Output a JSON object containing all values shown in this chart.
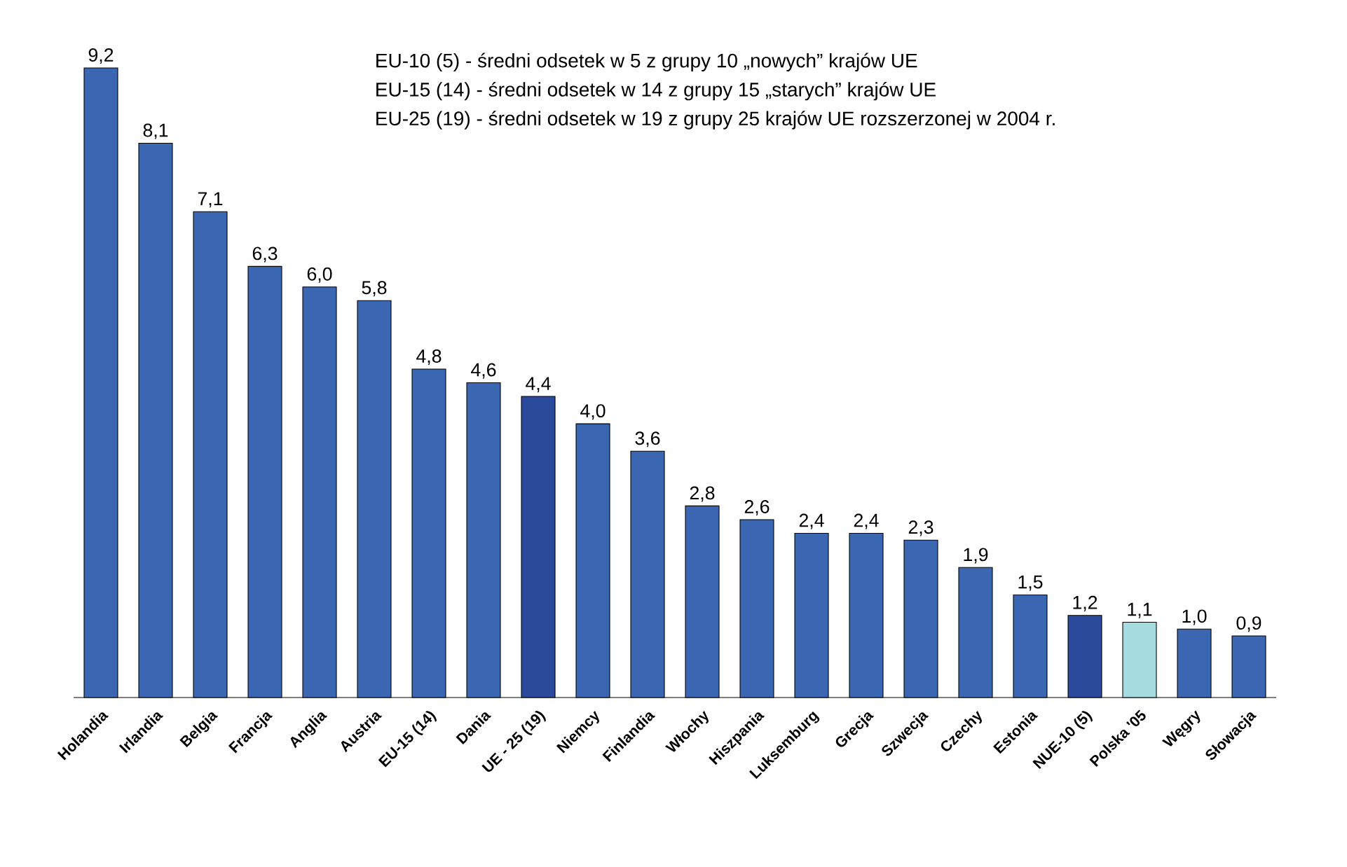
{
  "chart_data": {
    "type": "bar",
    "categories": [
      "Holandia",
      "Irlandia",
      "Belgia",
      "Francja",
      "Anglia",
      "Austria",
      "EU-15 (14)",
      "Dania",
      "UE - 25 (19)",
      "Niemcy",
      "Finlandia",
      "Włochy",
      "Hiszpania",
      "Luksemburg",
      "Grecja",
      "Szwecja",
      "Czechy",
      "Estonia",
      "NUE-10 (5)",
      "Polska '05",
      "Węgry",
      "Słowacja"
    ],
    "values": [
      9.2,
      8.1,
      7.1,
      6.3,
      6.0,
      5.8,
      4.8,
      4.6,
      4.4,
      4.0,
      3.6,
      2.8,
      2.6,
      2.4,
      2.4,
      2.3,
      1.9,
      1.5,
      1.2,
      1.1,
      1.0,
      0.9
    ],
    "value_labels": [
      "9,2",
      "8,1",
      "7,1",
      "6,3",
      "6,0",
      "5,8",
      "4,8",
      "4,6",
      "4,4",
      "4,0",
      "3,6",
      "2,8",
      "2,6",
      "2,4",
      "2,4",
      "2,3",
      "1,9",
      "1,5",
      "1,2",
      "1,1",
      "1,0",
      "0,9"
    ],
    "colors": [
      "#3a66b2",
      "#3a66b2",
      "#3a66b2",
      "#3a66b2",
      "#3a66b2",
      "#3a66b2",
      "#3a66b2",
      "#3a66b2",
      "#2c4a9c",
      "#3a66b2",
      "#3a66b2",
      "#3a66b2",
      "#3a66b2",
      "#3a66b2",
      "#3a66b2",
      "#3a66b2",
      "#3a66b2",
      "#3a66b2",
      "#2c4a9c",
      "#a6dce0",
      "#3a66b2",
      "#3a66b2"
    ],
    "annotations": [
      "EU-10 (5) - średni odsetek w 5 z grupy 10 „nowych” krajów UE",
      "EU-15 (14) - średni odsetek w 14 z grupy 15 „starych” krajów UE",
      "EU-25 (19) - średni odsetek w 19 z grupy 25 krajów UE rozszerzonej w 2004 r."
    ]
  }
}
